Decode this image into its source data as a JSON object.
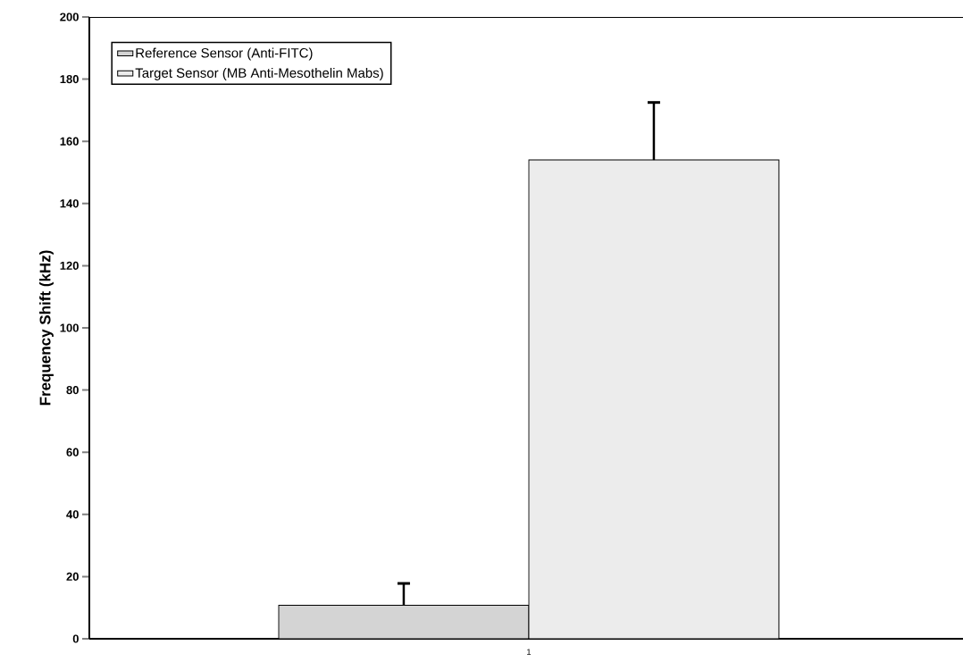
{
  "chart_data": {
    "type": "bar",
    "ylabel": "Frequency Shift (kHz)",
    "categories": [
      "1"
    ],
    "series": [
      {
        "name": "Reference Sensor (Anti-FITC)",
        "color": "#d4d4d4",
        "values": [
          10.8
        ],
        "errors": [
          [
            10.8,
            17.8
          ]
        ]
      },
      {
        "name": "Target Sensor (MB Anti-Mesothelin Mabs)",
        "color": "#ececec",
        "values": [
          154
        ],
        "errors": [
          [
            154,
            172.5
          ]
        ]
      }
    ],
    "ylim": [
      0,
      200
    ],
    "yticks": [
      0,
      20,
      40,
      60,
      80,
      100,
      120,
      140,
      160,
      180,
      200
    ],
    "legend": "top left"
  }
}
